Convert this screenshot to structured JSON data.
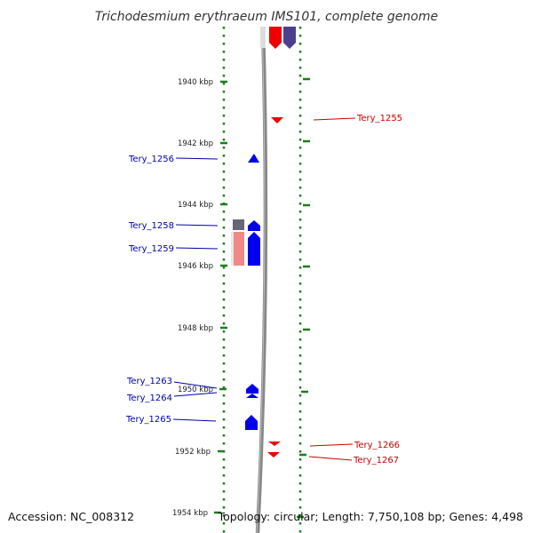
{
  "title": "Trichodesmium erythraeum IMS101, complete genome",
  "footer": {
    "accession": "Accession: NC_008312",
    "topology": "Topology: circular; Length: 7,750,108 bp; Genes: 4,498"
  },
  "ruler_labels": [
    "1940 kbp",
    "1942 kbp",
    "1944 kbp",
    "1946 kbp",
    "1948 kbp",
    "1950 kbp",
    "1952 kbp",
    "1954 kbp"
  ],
  "gene_labels": {
    "tery_1255": "Tery_1255",
    "tery_1256": "Tery_1256",
    "tery_1258": "Tery_1258",
    "tery_1259": "Tery_1259",
    "tery_1263": "Tery_1263",
    "tery_1264": "Tery_1264",
    "tery_1265": "Tery_1265",
    "tery_1266": "Tery_1266",
    "tery_1267": "Tery_1267"
  },
  "colors": {
    "forward_gene": "#0000ee",
    "reverse_gene": "#ee0000",
    "ruler_tick": "#1a7f1a",
    "backbone": "#888888",
    "pseudo_forward": "#6a5e96",
    "pseudo_reverse": "#f08888",
    "dark_block": "#666677"
  }
}
